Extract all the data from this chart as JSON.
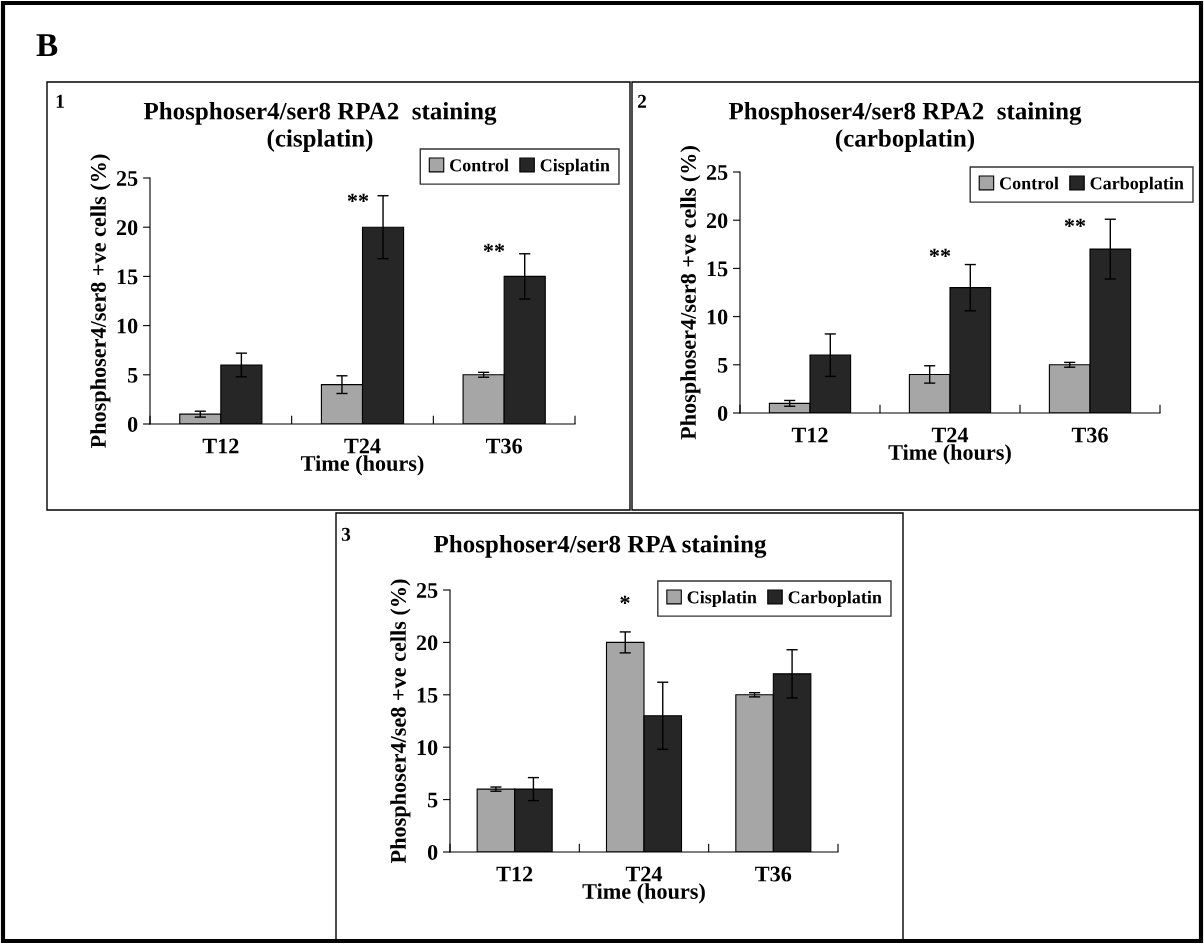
{
  "chart_data": [
    {
      "type": "bar",
      "title": "Phosphoser4/ser8 RPA2  staining\n(cisplatin)",
      "xlabel": "Time (hours)",
      "ylabel": "Phosphoser4/ser8 +ve cells (%)",
      "categories": [
        "T12",
        "T24",
        "T36"
      ],
      "series": [
        {
          "name": "Control",
          "color": "#a6a6a6",
          "values": [
            1,
            4,
            5
          ],
          "errors": [
            0.3,
            0.9,
            0.25
          ]
        },
        {
          "name": "Cisplatin",
          "color": "#262626",
          "values": [
            6,
            20,
            15
          ],
          "errors": [
            1.2,
            3.2,
            2.3
          ]
        }
      ],
      "ylim": [
        0,
        25
      ],
      "yticks": [
        0,
        5,
        10,
        15,
        20,
        25
      ],
      "grid": false,
      "legend": "top right",
      "annotations": [
        "B",
        "1",
        "**",
        "**"
      ]
    },
    {
      "type": "bar",
      "title": "Phosphoser4/ser8 RPA2  staining\n(carboplatin)",
      "xlabel": "Time (hours)",
      "ylabel": "Phosphoser4/ser8 +ve cells (%)",
      "categories": [
        "T12",
        "T24",
        "T36"
      ],
      "series": [
        {
          "name": "Control",
          "color": "#a6a6a6",
          "values": [
            1,
            4,
            5
          ],
          "errors": [
            0.3,
            0.9,
            0.25
          ]
        },
        {
          "name": "Carboplatin",
          "color": "#262626",
          "values": [
            6,
            13,
            17
          ],
          "errors": [
            2.2,
            2.4,
            3.1
          ]
        }
      ],
      "ylim": [
        0,
        25
      ],
      "yticks": [
        0,
        5,
        10,
        15,
        20,
        25
      ],
      "grid": false,
      "legend": "top right",
      "annotations": [
        "2",
        "**",
        "**"
      ]
    },
    {
      "type": "bar",
      "title": "Phosphoser4/ser8 RPA staining",
      "xlabel": "Time (hours)",
      "ylabel": "Phosphoser4/se8 +ve cells (%)",
      "categories": [
        "T12",
        "T24",
        "T36"
      ],
      "series": [
        {
          "name": "Cisplatin",
          "color": "#a6a6a6",
          "values": [
            6,
            20,
            15
          ],
          "errors": [
            0.2,
            1.0,
            0.2
          ]
        },
        {
          "name": "Carboplatin",
          "color": "#262626",
          "values": [
            6,
            13,
            17
          ],
          "errors": [
            1.1,
            3.2,
            2.3
          ]
        }
      ],
      "ylim": [
        0,
        25
      ],
      "yticks": [
        0,
        5,
        10,
        15,
        20,
        25
      ],
      "grid": false,
      "legend": "top right",
      "annotations": [
        "3",
        "*"
      ]
    }
  ]
}
